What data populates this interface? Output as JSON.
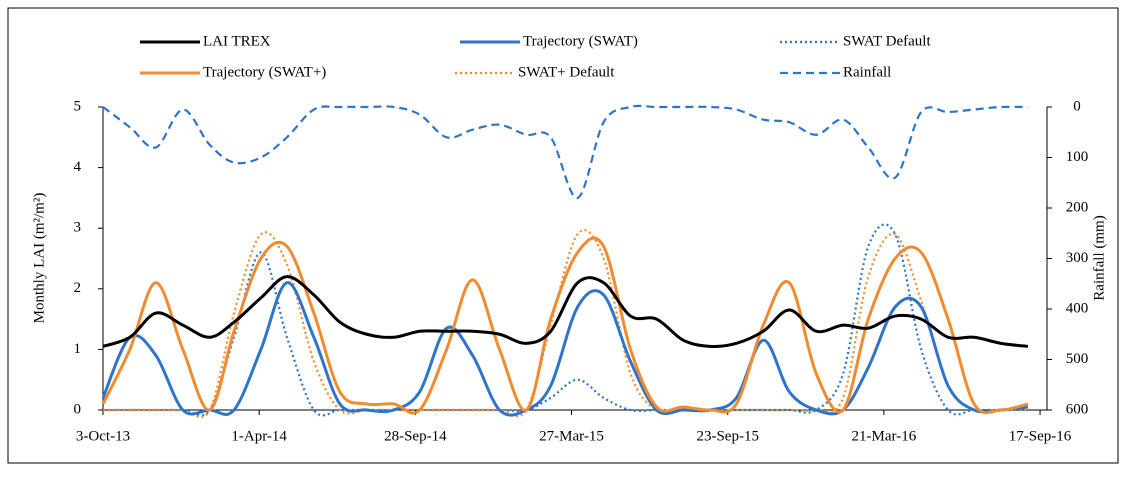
{
  "chart_data": {
    "type": "line",
    "ylabel": "Monthly LAI (m²/m²)",
    "y2label": "Rainfall (mm)",
    "x": [
      "2013-10-03",
      "2013-11-03",
      "2013-12-03",
      "2014-01-03",
      "2014-02-03",
      "2014-03-03",
      "2014-04-03",
      "2014-05-03",
      "2014-06-03",
      "2014-07-03",
      "2014-08-03",
      "2014-09-03",
      "2014-10-03",
      "2014-11-03",
      "2014-12-03",
      "2015-01-03",
      "2015-02-03",
      "2015-03-03",
      "2015-04-03",
      "2015-05-03",
      "2015-06-03",
      "2015-07-03",
      "2015-08-03",
      "2015-09-03",
      "2015-10-03",
      "2015-11-03",
      "2015-12-03",
      "2016-01-03",
      "2016-02-03",
      "2016-03-03",
      "2016-04-03",
      "2016-05-03",
      "2016-06-03",
      "2016-07-03",
      "2016-08-03",
      "2016-09-03"
    ],
    "xlim": [
      "2013-10-03",
      "2016-09-25"
    ],
    "xticks": [
      {
        "value": "2013-10-03",
        "label": "3-Oct-13"
      },
      {
        "value": "2014-04-01",
        "label": "1-Apr-14"
      },
      {
        "value": "2014-09-28",
        "label": "28-Sep-14"
      },
      {
        "value": "2015-03-27",
        "label": "27-Mar-15"
      },
      {
        "value": "2015-09-23",
        "label": "23-Sep-15"
      },
      {
        "value": "2016-03-21",
        "label": "21-Mar-16"
      },
      {
        "value": "2016-09-17",
        "label": "17-Sep-16"
      }
    ],
    "ylim": [
      0,
      5
    ],
    "yticks": [
      0,
      1,
      2,
      3,
      4,
      5
    ],
    "y2lim": [
      600,
      0
    ],
    "y2ticks": [
      600,
      500,
      400,
      300,
      200,
      100,
      0
    ],
    "series": [
      {
        "name": "LAI TREX",
        "color": "#000000",
        "style": "solid",
        "values": [
          1.05,
          1.2,
          1.6,
          1.4,
          1.2,
          1.45,
          1.85,
          2.2,
          1.9,
          1.45,
          1.25,
          1.2,
          1.3,
          1.3,
          1.3,
          1.25,
          1.1,
          1.3,
          2.1,
          2.1,
          1.55,
          1.5,
          1.15,
          1.05,
          1.1,
          1.3,
          1.65,
          1.3,
          1.4,
          1.35,
          1.55,
          1.5,
          1.2,
          1.2,
          1.1,
          1.05
        ]
      },
      {
        "name": "Trajectory (SWAT)",
        "color": "#2e75c9",
        "style": "solid",
        "values": [
          0.2,
          1.2,
          0.9,
          0,
          0,
          0,
          1.0,
          2.1,
          1.2,
          0.1,
          0,
          0,
          0.3,
          1.35,
          0.9,
          0,
          0,
          0.4,
          1.7,
          1.9,
          0.8,
          0,
          0,
          0,
          0.2,
          1.15,
          0.3,
          0,
          0,
          0.7,
          1.7,
          1.7,
          0.4,
          0,
          0,
          0.05
        ]
      },
      {
        "name": "SWAT Default",
        "color": "#2e75c9",
        "style": "dotted",
        "values": [
          0,
          0,
          0,
          0,
          0,
          1.2,
          2.6,
          1.2,
          0,
          0,
          0,
          0,
          0,
          0,
          0,
          0,
          0,
          0.2,
          0.5,
          0.2,
          0,
          0,
          0,
          0,
          0,
          0,
          0,
          0,
          0.6,
          2.7,
          2.9,
          1.0,
          0,
          0,
          0,
          0
        ]
      },
      {
        "name": "Trajectory (SWAT+)",
        "color": "#f28b30",
        "style": "solid",
        "values": [
          0.1,
          1.0,
          2.1,
          1.0,
          0,
          1.3,
          2.5,
          2.7,
          1.6,
          0.3,
          0.1,
          0.1,
          0,
          1.0,
          2.15,
          1.0,
          0,
          1.5,
          2.6,
          2.7,
          1.0,
          0.05,
          0.05,
          0,
          0.1,
          1.4,
          2.1,
          0.6,
          0,
          1.5,
          2.5,
          2.6,
          1.5,
          0.1,
          0,
          0.1
        ]
      },
      {
        "name": "SWAT+ Default",
        "color": "#f28b30",
        "style": "dotted",
        "values": [
          0,
          0,
          0,
          0,
          0,
          1.6,
          2.9,
          2.4,
          0.8,
          0,
          0,
          0,
          0,
          0,
          0,
          0,
          0,
          1.4,
          2.9,
          2.5,
          0.6,
          0,
          0,
          0,
          0,
          0,
          0,
          0,
          0.2,
          2.2,
          2.9,
          1.8,
          0.4,
          0,
          0,
          0
        ]
      },
      {
        "name": "Rainfall",
        "color": "#2e75c9",
        "style": "dashed",
        "axis": "y2",
        "values": [
          0,
          40,
          80,
          5,
          75,
          110,
          100,
          60,
          5,
          0,
          0,
          0,
          15,
          60,
          45,
          35,
          55,
          60,
          180,
          30,
          0,
          0,
          0,
          0,
          5,
          25,
          30,
          55,
          25,
          80,
          140,
          10,
          10,
          5,
          0,
          0
        ]
      }
    ]
  }
}
